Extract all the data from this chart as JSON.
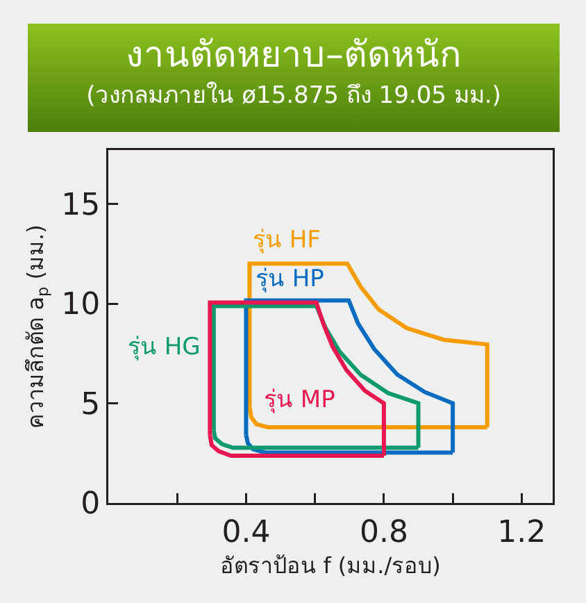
{
  "chart_data": {
    "type": "line",
    "title": "งานตัดหยาบ–ตัดหนัก",
    "subtitle": "(วงกลมภายใน ø15.875 ถึง 19.05 มม.)",
    "xlabel": "อัตราป้อน f (มม./รอบ)",
    "ylabel": "ความลึกตัด a$_{p}$ (มม.)",
    "xlim": [
      0,
      1.29
    ],
    "ylim": [
      0,
      17.7
    ],
    "xticks": [
      {
        "value": 0.2,
        "label": null
      },
      0.4,
      {
        "value": 0.6,
        "label": null
      },
      0.8,
      {
        "value": 1.0,
        "label": null
      },
      1.2
    ],
    "yticks": [
      0,
      5,
      10,
      15
    ],
    "legend": false,
    "marker": "none",
    "line_style": "solid",
    "series": [
      {
        "name": "รุ่น HF",
        "color": "#f59c00",
        "x": [
          0.41,
          0.41,
          0.694,
          0.732,
          0.785,
          0.866,
          0.973,
          1.1,
          1.1,
          null,
          0.41,
          0.415,
          0.43,
          0.463,
          1.1
        ],
        "values": [
          4.8,
          12,
          12,
          10.86,
          9.7,
          8.77,
          8.19,
          7.95,
          3.8,
          null,
          4.8,
          4.3,
          3.95,
          3.8,
          3.8
        ]
      },
      {
        "name": "รุ่น HP",
        "color": "#0a6cc0",
        "x": [
          0.4,
          0.4,
          0.698,
          0.725,
          0.772,
          0.839,
          0.919,
          1.0,
          1.0,
          null,
          0.4,
          0.405,
          0.42,
          0.456,
          1.0
        ],
        "values": [
          3.4,
          10.16,
          10.16,
          9.0,
          7.72,
          6.44,
          5.56,
          5.0,
          2.53,
          null,
          3.4,
          3.0,
          2.7,
          2.53,
          2.53
        ]
      },
      {
        "name": "รุ่น HG",
        "color": "#0e9a6e",
        "x": [
          0.306,
          0.306,
          0.604,
          0.631,
          0.671,
          0.732,
          0.812,
          0.9,
          0.9,
          null,
          0.306,
          0.31,
          0.33,
          0.362,
          0.9
        ],
        "values": [
          3.65,
          9.88,
          9.88,
          8.77,
          7.6,
          6.44,
          5.51,
          5.0,
          2.77,
          null,
          3.65,
          3.25,
          2.95,
          2.77,
          2.77
        ]
      },
      {
        "name": "รุ่น MP",
        "color": "#e8174f",
        "x": [
          0.295,
          0.295,
          0.604,
          0.624,
          0.651,
          0.691,
          0.745,
          0.8,
          0.8,
          null,
          0.295,
          0.3,
          0.32,
          0.356,
          0.8
        ],
        "values": [
          3.4,
          10.05,
          10.05,
          9.0,
          7.84,
          6.67,
          5.63,
          5.0,
          2.37,
          null,
          3.4,
          2.9,
          2.6,
          2.37,
          2.37
        ]
      }
    ]
  }
}
